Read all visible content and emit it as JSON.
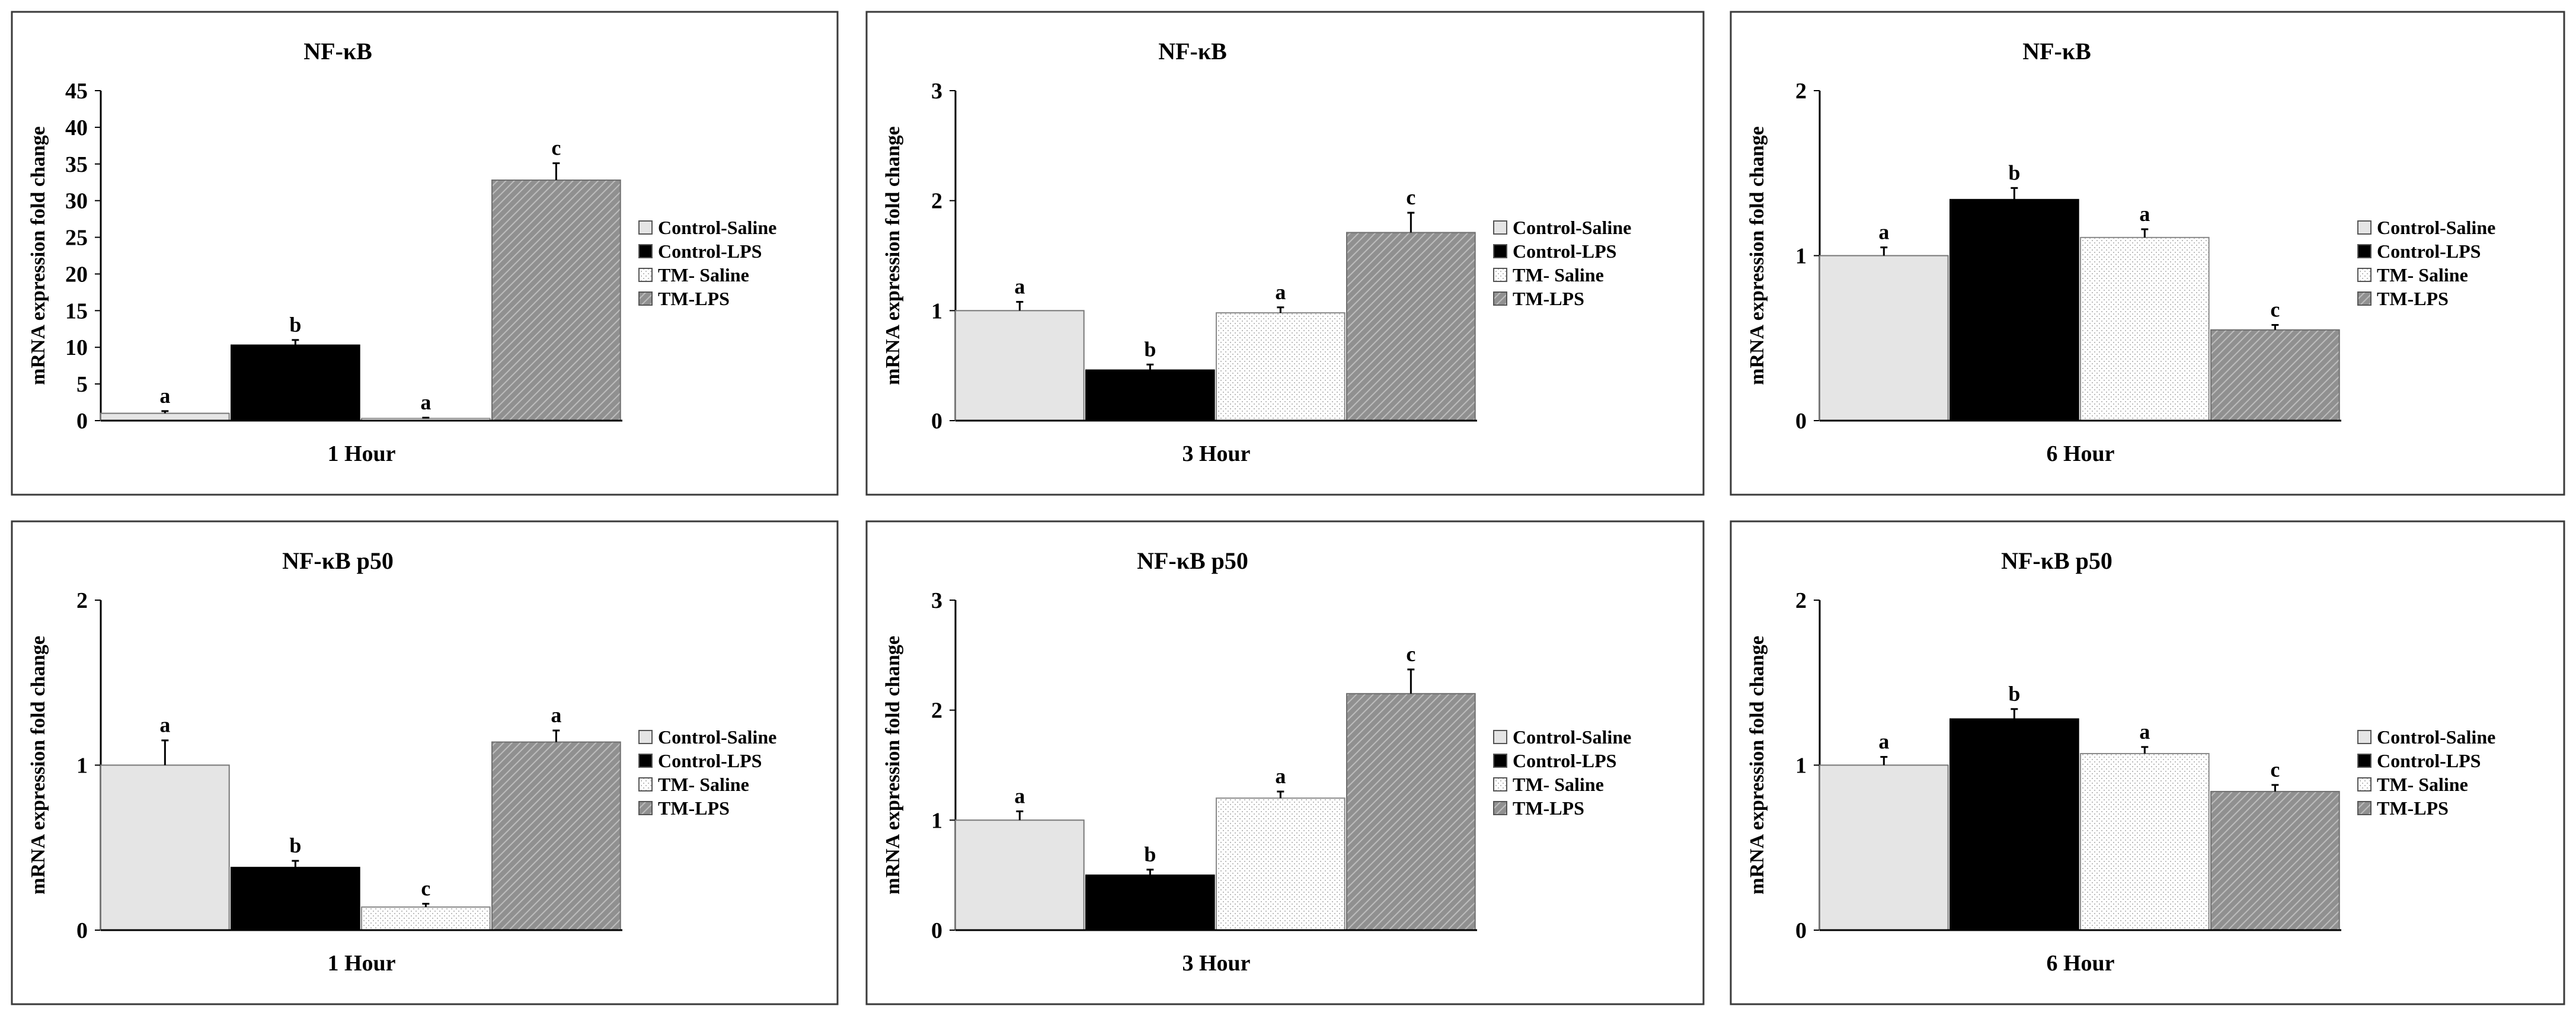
{
  "chart_data": [
    {
      "type": "bar",
      "title": "NF-κB",
      "xlabel": "1 Hour",
      "ylabel": "mRNA expression fold change",
      "ylim": [
        0,
        45
      ],
      "yticks": [
        0,
        5,
        10,
        15,
        20,
        25,
        30,
        35,
        40,
        45
      ],
      "legend_position": "right",
      "series": [
        {
          "name": "Control-Saline",
          "value": 1.0,
          "error": 0.3,
          "label": "a",
          "fill": "light-gray"
        },
        {
          "name": "Control-LPS",
          "value": 10.3,
          "error": 0.7,
          "label": "b",
          "fill": "black"
        },
        {
          "name": "TM- Saline",
          "value": 0.3,
          "error": 0.1,
          "label": "a",
          "fill": "dotted"
        },
        {
          "name": "TM-LPS",
          "value": 32.8,
          "error": 2.3,
          "label": "c",
          "fill": "hatched-gray"
        }
      ]
    },
    {
      "type": "bar",
      "title": "NF-κB",
      "xlabel": "3 Hour",
      "ylabel": "mRNA expression fold change",
      "ylim": [
        0,
        3
      ],
      "yticks": [
        0,
        1,
        2,
        3
      ],
      "legend_position": "right",
      "series": [
        {
          "name": "Control-Saline",
          "value": 1.0,
          "error": 0.08,
          "label": "a",
          "fill": "light-gray"
        },
        {
          "name": "Control-LPS",
          "value": 0.46,
          "error": 0.05,
          "label": "b",
          "fill": "black"
        },
        {
          "name": "TM- Saline",
          "value": 0.98,
          "error": 0.05,
          "label": "a",
          "fill": "dotted"
        },
        {
          "name": "TM-LPS",
          "value": 1.71,
          "error": 0.18,
          "label": "c",
          "fill": "hatched-gray"
        }
      ]
    },
    {
      "type": "bar",
      "title": "NF-κB",
      "xlabel": "6 Hour",
      "ylabel": "mRNA expression fold change",
      "ylim": [
        0,
        2
      ],
      "yticks": [
        0,
        1,
        2
      ],
      "legend_position": "right",
      "series": [
        {
          "name": "Control-Saline",
          "value": 1.0,
          "error": 0.05,
          "label": "a",
          "fill": "light-gray"
        },
        {
          "name": "Control-LPS",
          "value": 1.34,
          "error": 0.07,
          "label": "b",
          "fill": "black"
        },
        {
          "name": "TM- Saline",
          "value": 1.11,
          "error": 0.05,
          "label": "a",
          "fill": "dotted"
        },
        {
          "name": "TM-LPS",
          "value": 0.55,
          "error": 0.03,
          "label": "c",
          "fill": "hatched-gray"
        }
      ]
    },
    {
      "type": "bar",
      "title": "NF-κB p50",
      "xlabel": "1 Hour",
      "ylabel": "mRNA expression fold change",
      "ylim": [
        0,
        2
      ],
      "yticks": [
        0,
        1,
        2
      ],
      "legend_position": "right",
      "series": [
        {
          "name": "Control-Saline",
          "value": 1.0,
          "error": 0.15,
          "label": "a",
          "fill": "light-gray"
        },
        {
          "name": "Control-LPS",
          "value": 0.38,
          "error": 0.04,
          "label": "b",
          "fill": "black"
        },
        {
          "name": "TM- Saline",
          "value": 0.14,
          "error": 0.02,
          "label": "c",
          "fill": "dotted"
        },
        {
          "name": "TM-LPS",
          "value": 1.14,
          "error": 0.07,
          "label": "a",
          "fill": "hatched-gray"
        }
      ]
    },
    {
      "type": "bar",
      "title": "NF-κB p50",
      "xlabel": "3 Hour",
      "ylabel": "mRNA expression fold change",
      "ylim": [
        0,
        3
      ],
      "yticks": [
        0,
        1,
        2,
        3
      ],
      "legend_position": "right",
      "series": [
        {
          "name": "Control-Saline",
          "value": 1.0,
          "error": 0.08,
          "label": "a",
          "fill": "light-gray"
        },
        {
          "name": "Control-LPS",
          "value": 0.5,
          "error": 0.05,
          "label": "b",
          "fill": "black"
        },
        {
          "name": "TM- Saline",
          "value": 1.2,
          "error": 0.06,
          "label": "a",
          "fill": "dotted"
        },
        {
          "name": "TM-LPS",
          "value": 2.15,
          "error": 0.22,
          "label": "c",
          "fill": "hatched-gray"
        }
      ]
    },
    {
      "type": "bar",
      "title": "NF-κB p50",
      "xlabel": "6 Hour",
      "ylabel": "mRNA expression fold change",
      "ylim": [
        0,
        2
      ],
      "yticks": [
        0,
        1,
        2
      ],
      "legend_position": "right",
      "series": [
        {
          "name": "Control-Saline",
          "value": 1.0,
          "error": 0.05,
          "label": "a",
          "fill": "light-gray"
        },
        {
          "name": "Control-LPS",
          "value": 1.28,
          "error": 0.06,
          "label": "b",
          "fill": "black"
        },
        {
          "name": "TM- Saline",
          "value": 1.07,
          "error": 0.04,
          "label": "a",
          "fill": "dotted"
        },
        {
          "name": "TM-LPS",
          "value": 0.84,
          "error": 0.04,
          "label": "c",
          "fill": "hatched-gray"
        }
      ]
    }
  ]
}
